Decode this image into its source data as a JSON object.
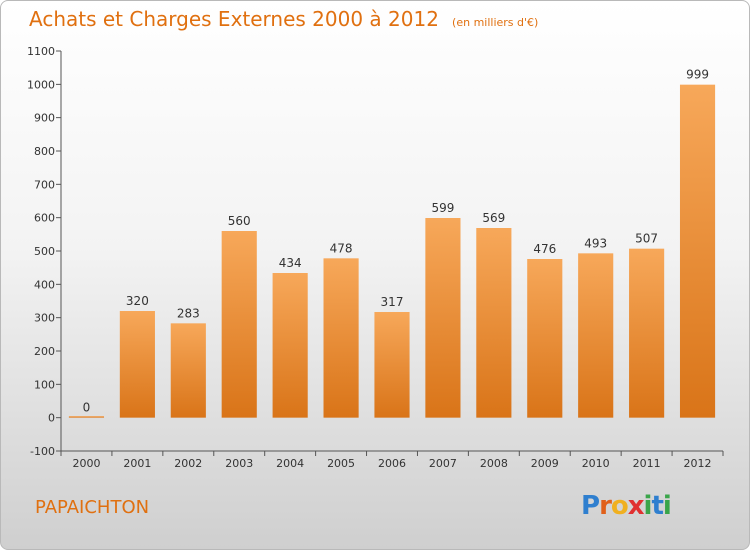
{
  "chart_data": {
    "type": "bar",
    "title": "Achats et Charges Externes 2000 à 2012",
    "subtitle": "(en milliers d'€)",
    "categories": [
      "2000",
      "2001",
      "2002",
      "2003",
      "2004",
      "2005",
      "2006",
      "2007",
      "2008",
      "2009",
      "2010",
      "2011",
      "2012"
    ],
    "values": [
      0,
      320,
      283,
      560,
      434,
      478,
      317,
      599,
      569,
      476,
      493,
      507,
      999
    ],
    "ylim": [
      -100,
      1100
    ],
    "yticks": [
      -100,
      0,
      100,
      200,
      300,
      400,
      500,
      600,
      700,
      800,
      900,
      1000,
      1100
    ],
    "grid": false,
    "colors": {
      "bar_light": "#f7a85a",
      "bar_dark": "#d97418",
      "title": "#e07010"
    }
  },
  "town": "PAPAICHTON",
  "logo": {
    "letters": [
      "P",
      "r",
      "o",
      "x",
      "i",
      "t",
      "i"
    ],
    "colors": [
      "#2f7fcf",
      "#e0601a",
      "#f0b020",
      "#e03030",
      "#3aa54a",
      "#2f7fcf",
      "#3aa54a"
    ]
  }
}
